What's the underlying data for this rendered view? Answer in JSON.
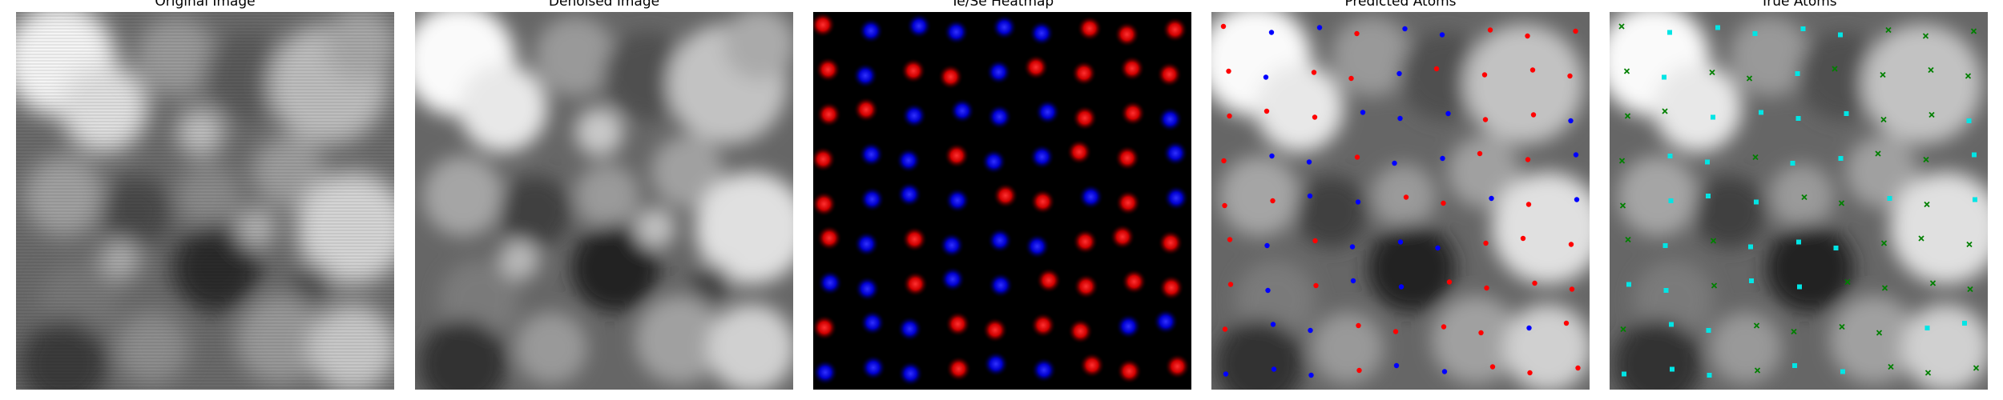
{
  "panels": [
    {
      "title": "Original Image"
    },
    {
      "title": "Denoised Image"
    },
    {
      "title": "Te/Se Heatmap"
    },
    {
      "title": "Predicted Atoms"
    },
    {
      "title": "True Atoms"
    }
  ],
  "colors": {
    "background": "#ffffff",
    "heatmap_te": "#ff1a1a",
    "heatmap_se": "#1a1aff",
    "predicted_te": "#ff0000",
    "predicted_se": "#0000ff",
    "true_te": "#008000",
    "true_se": "#00e5e5"
  }
}
